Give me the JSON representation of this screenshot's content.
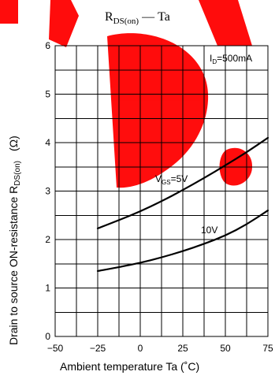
{
  "chart_data": {
    "type": "line",
    "title": {
      "main": "R",
      "sub": "DS(on)",
      "dash": "—",
      "rest": "Ta"
    },
    "xlabel": "Ambient temperature Ta (˚C)",
    "ylabel": {
      "main": "Drain to source ON-resistance R",
      "sub": "DS(on)",
      "unit": "(Ω)"
    },
    "xlim": [
      -50,
      75
    ],
    "ylim": [
      0,
      6
    ],
    "x_ticks": [
      "−50",
      "−25",
      "0",
      "25",
      "50",
      "75"
    ],
    "y_ticks": [
      "0",
      "1",
      "2",
      "3",
      "4",
      "5",
      "6"
    ],
    "grid": true,
    "condition": {
      "main": "I",
      "sub": "D",
      "rest": "=500mA"
    },
    "series": [
      {
        "name": "V_GS=5V",
        "label": {
          "main": "V",
          "sub": "GS",
          "rest": "=5V"
        },
        "x": [
          -25,
          -12.5,
          0,
          12.5,
          25,
          37.5,
          50,
          62.5,
          75
        ],
        "y": [
          2.23,
          2.4,
          2.58,
          2.79,
          3.02,
          3.27,
          3.53,
          3.8,
          4.1
        ]
      },
      {
        "name": "10V",
        "label": {
          "main": "10V",
          "sub": "",
          "rest": ""
        },
        "x": [
          -25,
          -12.5,
          0,
          12.5,
          25,
          37.5,
          50,
          62.5,
          75
        ],
        "y": [
          1.35,
          1.43,
          1.52,
          1.63,
          1.76,
          1.91,
          2.08,
          2.31,
          2.6
        ]
      }
    ],
    "colors": {
      "line": "#000000",
      "watermark": "#ff0000"
    }
  }
}
